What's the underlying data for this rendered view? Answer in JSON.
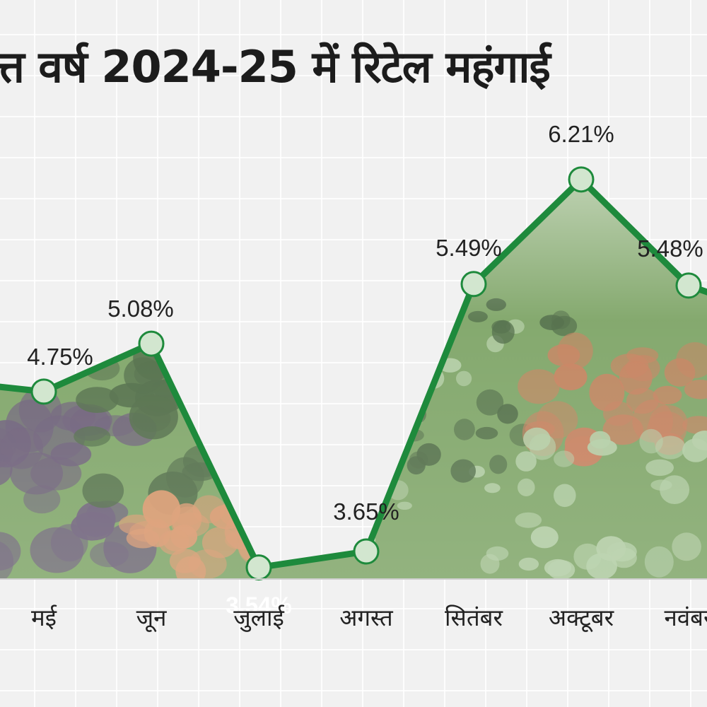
{
  "title": "त्त वर्ष 2024-25 में रिटेल महंगाई",
  "colors": {
    "line": "#1e8a3c",
    "marker_fill": "#d2e6cf",
    "marker_stroke": "#1e8a3c",
    "label_dark": "#222222",
    "label_light": "#ffffff",
    "veg_dark": "#3a5a30",
    "veg_mid": "#6f9a55",
    "veg_light": "#a9c79a",
    "eggplant": "#5a4a68",
    "carrot": "#d48a5a",
    "tomato": "#c0704a",
    "background": "#f1f1f1"
  },
  "chart_data": {
    "type": "line",
    "title": "त्त वर्ष 2024-25 में रिटेल महंगाई",
    "xlabel": "",
    "ylabel": "",
    "ylim": [
      2.2,
      6.9
    ],
    "grid": true,
    "categories": [
      "",
      "मई",
      "जून",
      "जुलाई",
      "अगस्त",
      "सितंबर",
      "अक्टूबर",
      "नवंबर",
      ""
    ],
    "series": [
      {
        "name": "रिटेल महंगाई",
        "values": [
          4.83,
          4.75,
          5.08,
          3.54,
          3.65,
          5.49,
          6.21,
          5.48,
          5.22
        ],
        "labels": [
          "",
          "4.75%",
          "5.08%",
          "3.54%",
          "3.65%",
          "5.49%",
          "6.21%",
          "5.48%",
          ""
        ]
      }
    ]
  }
}
